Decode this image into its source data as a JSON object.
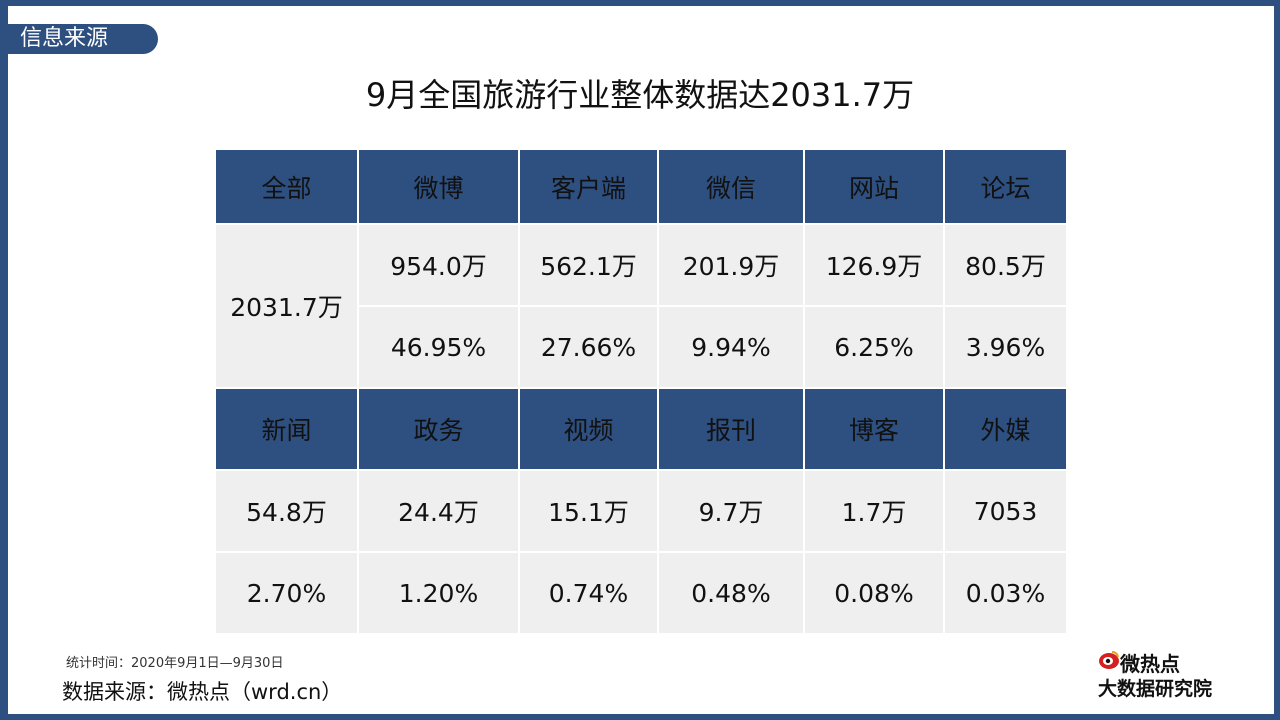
{
  "section_tag": "信息来源",
  "title": "9月全国旅游行业整体数据达2031.7万",
  "table": {
    "header1": [
      "全部",
      "微博",
      "客户端",
      "微信",
      "网站",
      "论坛"
    ],
    "total": "2031.7万",
    "values1": [
      "954.0万",
      "562.1万",
      "201.9万",
      "126.9万",
      "80.5万"
    ],
    "pct1": [
      "46.95%",
      "27.66%",
      "9.94%",
      "6.25%",
      "3.96%"
    ],
    "header2": [
      "新闻",
      "政务",
      "视频",
      "报刊",
      "博客",
      "外媒"
    ],
    "values2": [
      "54.8万",
      "24.4万",
      "15.1万",
      "9.7万",
      "1.7万",
      "7053"
    ],
    "pct2": [
      "2.70%",
      "1.20%",
      "0.74%",
      "0.48%",
      "0.08%",
      "0.03%"
    ]
  },
  "footer": {
    "stat_time": "统计时间：2020年9月1日—9月30日",
    "source": "数据来源：微热点（wrd.cn）"
  },
  "logo": {
    "line1": "微热点",
    "line2": "大数据研究院"
  },
  "colors": {
    "header_bg": "#2e5080",
    "cell_bg": "#efefef",
    "logo_accent": "#d42020"
  }
}
